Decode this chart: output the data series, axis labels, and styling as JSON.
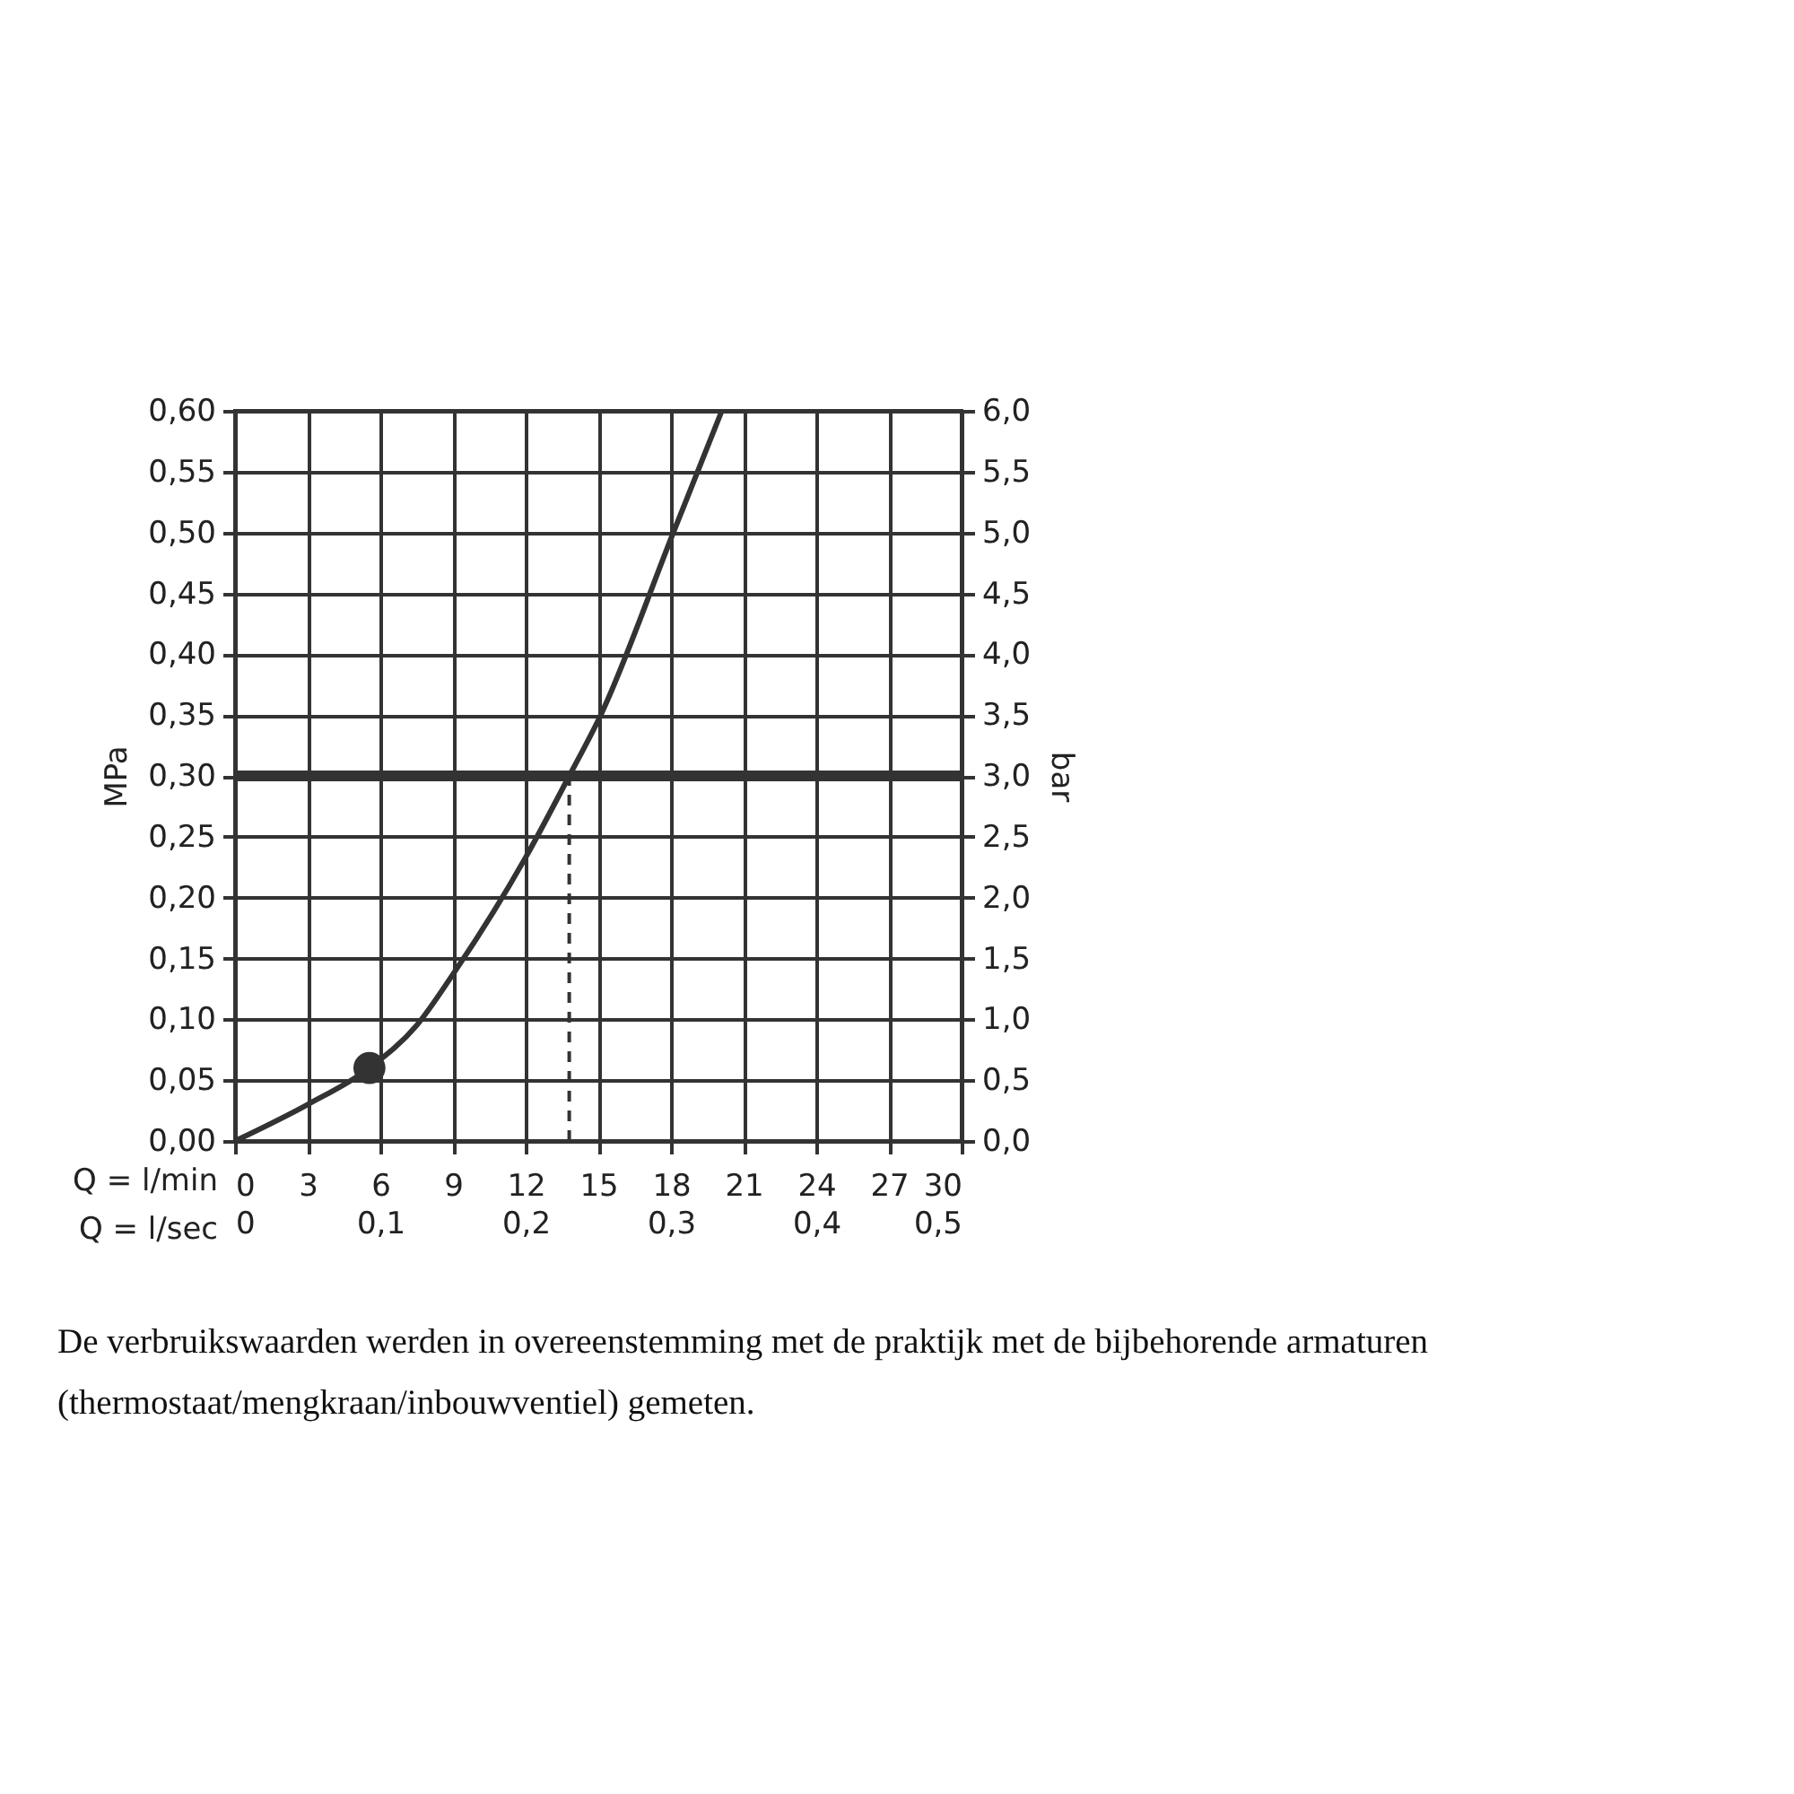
{
  "chart_data": {
    "type": "line",
    "xlabel": "Q = l/min",
    "x2label": "Q = l/sec",
    "ylabel": "MPa",
    "y2label": "bar",
    "xlim": [
      0,
      30
    ],
    "xticks": [
      0,
      3,
      6,
      9,
      12,
      15,
      18,
      21,
      24,
      27,
      30
    ],
    "x2lim": [
      0,
      0.5
    ],
    "x2ticks": [
      0,
      {
        "value": 0.1,
        "label": "0,1"
      },
      {
        "value": 0.2,
        "label": "0,2"
      },
      {
        "value": 0.3,
        "label": "0,3"
      },
      {
        "value": 0.4,
        "label": "0,4"
      },
      {
        "value": 0.5,
        "label": "0,5"
      }
    ],
    "ylim": [
      0,
      0.6
    ],
    "yticks": [
      {
        "value": 0,
        "label": "0,00"
      },
      {
        "value": 0.05,
        "label": "0,05"
      },
      {
        "value": 0.1,
        "label": "0,10"
      },
      {
        "value": 0.15,
        "label": "0,15"
      },
      {
        "value": 0.2,
        "label": "0,20"
      },
      {
        "value": 0.25,
        "label": "0,25"
      },
      {
        "value": 0.3,
        "label": "0,30"
      },
      {
        "value": 0.35,
        "label": "0,35"
      },
      {
        "value": 0.4,
        "label": "0,40"
      },
      {
        "value": 0.45,
        "label": "0,45"
      },
      {
        "value": 0.5,
        "label": "0,50"
      },
      {
        "value": 0.55,
        "label": "0,55"
      },
      {
        "value": 0.6,
        "label": "0,60"
      }
    ],
    "y2lim": [
      0,
      6
    ],
    "y2ticks": [
      {
        "value": 0,
        "label": "0,0"
      },
      {
        "value": 0.5,
        "label": "0,5"
      },
      {
        "value": 1,
        "label": "1,0"
      },
      {
        "value": 1.5,
        "label": "1,5"
      },
      {
        "value": 2,
        "label": "2,0"
      },
      {
        "value": 2.5,
        "label": "2,5"
      },
      {
        "value": 3,
        "label": "3,0"
      },
      {
        "value": 3.5,
        "label": "3,5"
      },
      {
        "value": 4,
        "label": "4,0"
      },
      {
        "value": 4.5,
        "label": "4,5"
      },
      {
        "value": 5,
        "label": "5,0"
      },
      {
        "value": 5.5,
        "label": "5,5"
      },
      {
        "value": 6,
        "label": "6,0"
      }
    ],
    "grid": true,
    "marker": "none",
    "line_style": "solid",
    "series": [
      {
        "type": "line",
        "color": "#333333",
        "x": [
          0,
          3,
          5.55,
          7.5,
          9,
          12,
          13.8,
          15.1,
          18.1,
          20.1
        ],
        "values": [
          0,
          0.03,
          0.06,
          0.095,
          0.137,
          0.233,
          0.3,
          0.35,
          0.5,
          0.6
        ]
      },
      {
        "type": "scatter",
        "marker": "circle",
        "color": "#333333",
        "x": [
          5.55
        ],
        "values": [
          0.06
        ]
      }
    ],
    "ref_lines": [
      {
        "axis": "y",
        "value": 0.3,
        "color": "#333333",
        "line_style": "solid"
      },
      {
        "axis": "x",
        "value": 13.8,
        "color": "#333333",
        "line_style": "dashed"
      }
    ],
    "annotations": [
      "De verbruikswaarden werden in overeenstemming met de praktijk met de bijbehorende armaturen (thermostaat/mengkraan/inbouwventiel) gemeten."
    ]
  }
}
